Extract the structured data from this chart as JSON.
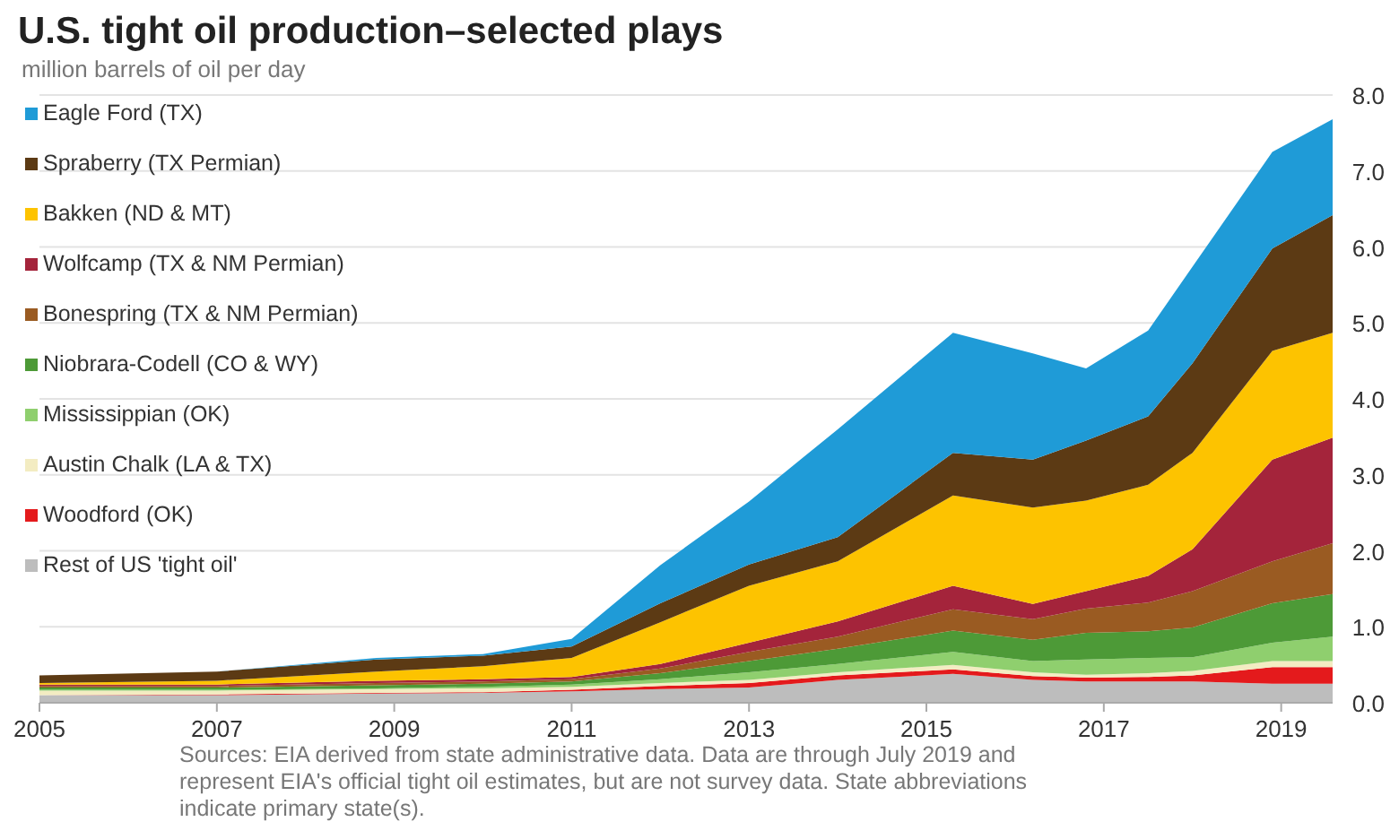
{
  "chart_data": {
    "type": "area",
    "stacked": true,
    "title": "U.S. tight oil production–selected plays",
    "subtitle": "million barrels of oil per day",
    "x": [
      2005,
      2007,
      2008.8,
      2010,
      2011,
      2012,
      2013,
      2014,
      2015.3,
      2016.2,
      2016.8,
      2017.5,
      2018,
      2018.9,
      2019.58
    ],
    "xlim": [
      2005,
      2019.58
    ],
    "xticks": [
      {
        "value": 2005,
        "label": "2005"
      },
      2007,
      2009,
      2011,
      2013,
      2015,
      2017,
      2019
    ],
    "ylim": [
      0,
      8
    ],
    "yticks": [
      {
        "value": 0,
        "label": "0.0"
      },
      {
        "value": 1,
        "label": "1.0"
      },
      {
        "value": 2,
        "label": "2.0"
      },
      {
        "value": 3,
        "label": "3.0"
      },
      {
        "value": 4,
        "label": "4.0"
      },
      {
        "value": 5,
        "label": "5.0"
      },
      {
        "value": 6,
        "label": "6.0"
      },
      {
        "value": 7,
        "label": "7.0"
      },
      {
        "value": 8,
        "label": "8.0"
      }
    ],
    "grid": "y",
    "legend": "top left",
    "series": [
      {
        "name": "Rest of US 'tight oil'",
        "color": "#bdbdbd",
        "values": [
          0.1,
          0.1,
          0.12,
          0.13,
          0.15,
          0.18,
          0.2,
          0.3,
          0.38,
          0.3,
          0.28,
          0.28,
          0.28,
          0.25,
          0.25
        ]
      },
      {
        "name": "Woodford (OK)",
        "color": "#e41a1c",
        "values": [
          0,
          0.01,
          0.01,
          0.01,
          0.02,
          0.04,
          0.06,
          0.06,
          0.06,
          0.05,
          0.05,
          0.06,
          0.08,
          0.22,
          0.22
        ]
      },
      {
        "name": "Austin Chalk (LA & TX)",
        "color": "#f3ecc2",
        "values": [
          0.06,
          0.05,
          0.05,
          0.05,
          0.04,
          0.04,
          0.04,
          0.04,
          0.06,
          0.05,
          0.04,
          0.05,
          0.06,
          0.08,
          0.08
        ]
      },
      {
        "name": "Mississippian (OK)",
        "color": "#8fcf6e",
        "values": [
          0.01,
          0.01,
          0.01,
          0.02,
          0.03,
          0.05,
          0.1,
          0.11,
          0.17,
          0.15,
          0.2,
          0.2,
          0.18,
          0.24,
          0.32
        ]
      },
      {
        "name": "Niobrara-Codell (CO & WY)",
        "color": "#4d9a37",
        "values": [
          0.03,
          0.03,
          0.04,
          0.04,
          0.04,
          0.08,
          0.15,
          0.2,
          0.28,
          0.28,
          0.35,
          0.35,
          0.39,
          0.52,
          0.56
        ]
      },
      {
        "name": "Bonespring (TX & NM Permian)",
        "color": "#9a5b22",
        "values": [
          0.02,
          0.02,
          0.03,
          0.03,
          0.03,
          0.06,
          0.12,
          0.16,
          0.28,
          0.27,
          0.32,
          0.38,
          0.48,
          0.55,
          0.67
        ]
      },
      {
        "name": "Wolfcamp (TX & NM Permian)",
        "color": "#a4243b",
        "values": [
          0.02,
          0.02,
          0.03,
          0.03,
          0.03,
          0.06,
          0.12,
          0.2,
          0.31,
          0.2,
          0.23,
          0.35,
          0.55,
          1.34,
          1.39
        ]
      },
      {
        "name": "Bakken (ND & MT)",
        "color": "#fdc300",
        "values": [
          0.02,
          0.05,
          0.12,
          0.17,
          0.25,
          0.55,
          0.75,
          0.79,
          1.19,
          1.27,
          1.19,
          1.2,
          1.27,
          1.43,
          1.38
        ]
      },
      {
        "name": "Spraberry (TX Permian)",
        "color": "#5c3a14",
        "values": [
          0.1,
          0.12,
          0.16,
          0.14,
          0.15,
          0.25,
          0.28,
          0.32,
          0.56,
          0.63,
          0.79,
          0.9,
          1.18,
          1.35,
          1.55
        ]
      },
      {
        "name": "Eagle Ford (TX)",
        "color": "#1f9bd7",
        "values": [
          0,
          0,
          0.02,
          0.02,
          0.1,
          0.5,
          0.83,
          1.42,
          1.58,
          1.4,
          0.95,
          1.13,
          1.27,
          1.27,
          1.26
        ]
      }
    ],
    "annotations": [
      "Sources: EIA derived from state administrative data. Data are through July 2019 and represent EIA's official tight oil estimates, but are not survey data. State abbreviations indicate primary state(s)."
    ]
  }
}
